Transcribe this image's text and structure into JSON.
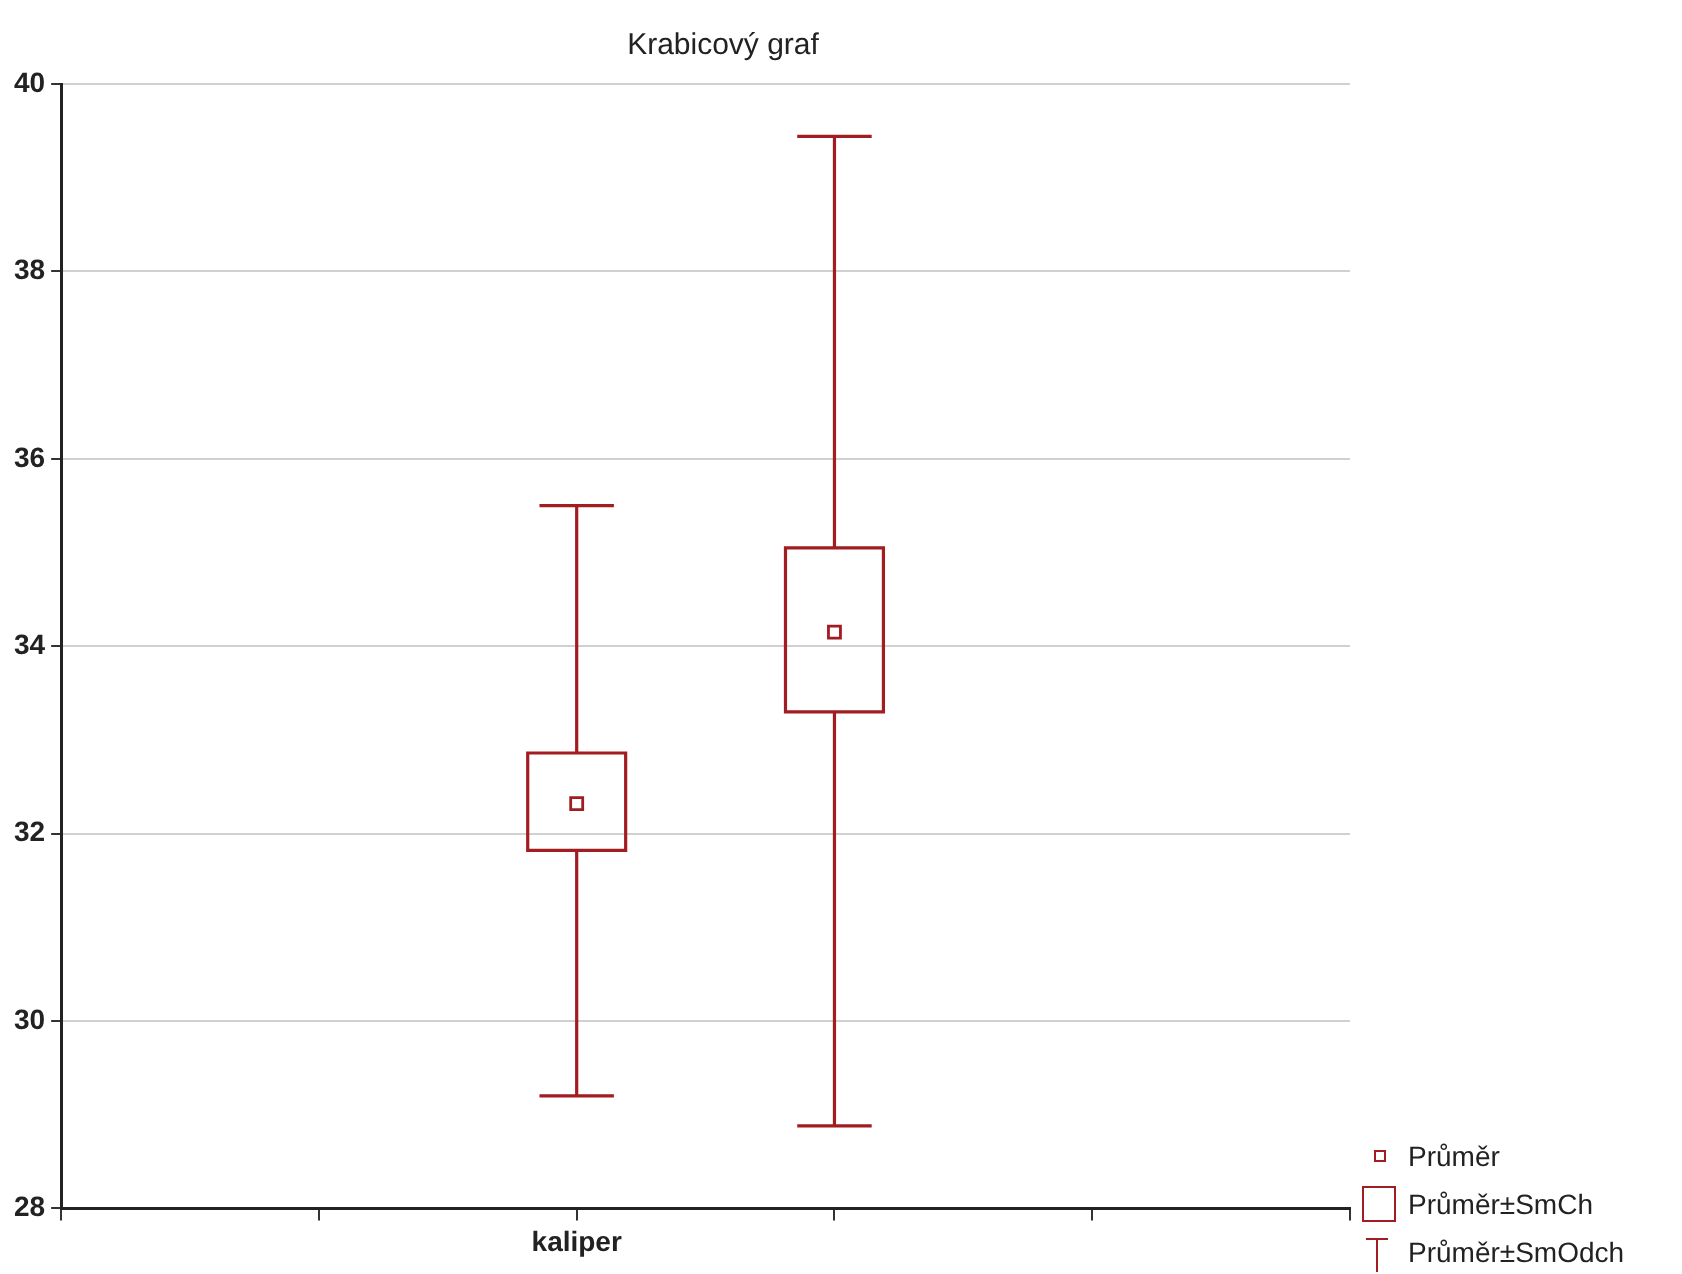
{
  "chart_data": {
    "type": "box",
    "title": "Krabicový graf",
    "categories": [
      "kaliper",
      null
    ],
    "series": [
      {
        "name": "Průměr±SmCh",
        "color": "#a11d21",
        "boxes": [
          {
            "low": 29.2,
            "q1": 31.82,
            "median": 32.32,
            "q3": 32.86,
            "high": 35.5
          },
          {
            "low": 28.88,
            "q1": 33.3,
            "median": 34.15,
            "q3": 35.05,
            "high": 39.44
          }
        ]
      }
    ],
    "annotations": [
      "Průměr",
      "Průměr±SmOdch"
    ],
    "ylim": [
      28,
      40
    ],
    "yticks": [
      28,
      30,
      32,
      34,
      36,
      38,
      40
    ],
    "grid": "y",
    "legend": "bottom right",
    "marker": "square"
  }
}
